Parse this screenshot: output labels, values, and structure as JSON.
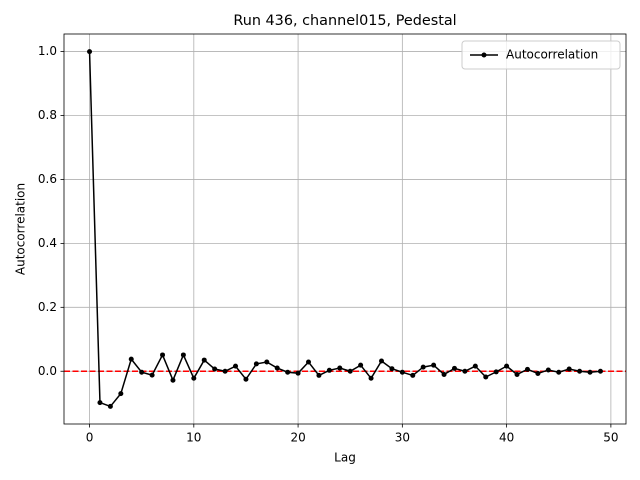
{
  "chart_data": {
    "type": "line",
    "title": "Run 436, channel015, Pedestal",
    "x_label": "Lag",
    "y_label": "Autocorrelation",
    "x": [
      0,
      1,
      2,
      3,
      4,
      5,
      6,
      7,
      8,
      9,
      10,
      11,
      12,
      13,
      14,
      15,
      16,
      17,
      18,
      19,
      20,
      21,
      22,
      23,
      24,
      25,
      26,
      27,
      28,
      29,
      30,
      31,
      32,
      33,
      34,
      35,
      36,
      37,
      38,
      39,
      40,
      41,
      42,
      43,
      44,
      45,
      46,
      47,
      48,
      49
    ],
    "series": [
      {
        "name": "Autocorrelation",
        "color": "#000000",
        "marker": true,
        "values": [
          1.0,
          -0.098,
          -0.11,
          -0.07,
          0.038,
          -0.003,
          -0.012,
          0.051,
          -0.028,
          0.051,
          -0.022,
          0.035,
          0.007,
          0.0,
          0.016,
          -0.025,
          0.023,
          0.029,
          0.01,
          -0.003,
          -0.006,
          0.029,
          -0.013,
          0.003,
          0.01,
          0.0,
          0.019,
          -0.022,
          0.032,
          0.008,
          -0.003,
          -0.013,
          0.013,
          0.019,
          -0.01,
          0.009,
          0.0,
          0.016,
          -0.018,
          -0.002,
          0.016,
          -0.01,
          0.006,
          -0.007,
          0.004,
          -0.003,
          0.007,
          0.0,
          -0.003,
          0.0
        ]
      }
    ],
    "hline": {
      "y": 0,
      "color": "#ff0000",
      "style": "dashed"
    },
    "xlim": [
      -2.45,
      51.45
    ],
    "xticks": [
      0,
      10,
      20,
      30,
      40,
      50
    ],
    "ylim": [
      -0.165,
      1.055
    ],
    "yticks": [
      {
        "value": 0,
        "label": "0.0"
      },
      {
        "value": 0.2,
        "label": "0.2"
      },
      {
        "value": 0.4,
        "label": "0.4"
      },
      {
        "value": 0.6,
        "label": "0.6"
      },
      {
        "value": 0.8,
        "label": "0.8"
      },
      {
        "value": 1.0,
        "label": "1.0"
      }
    ],
    "grid": true,
    "legend": "upper-right"
  }
}
